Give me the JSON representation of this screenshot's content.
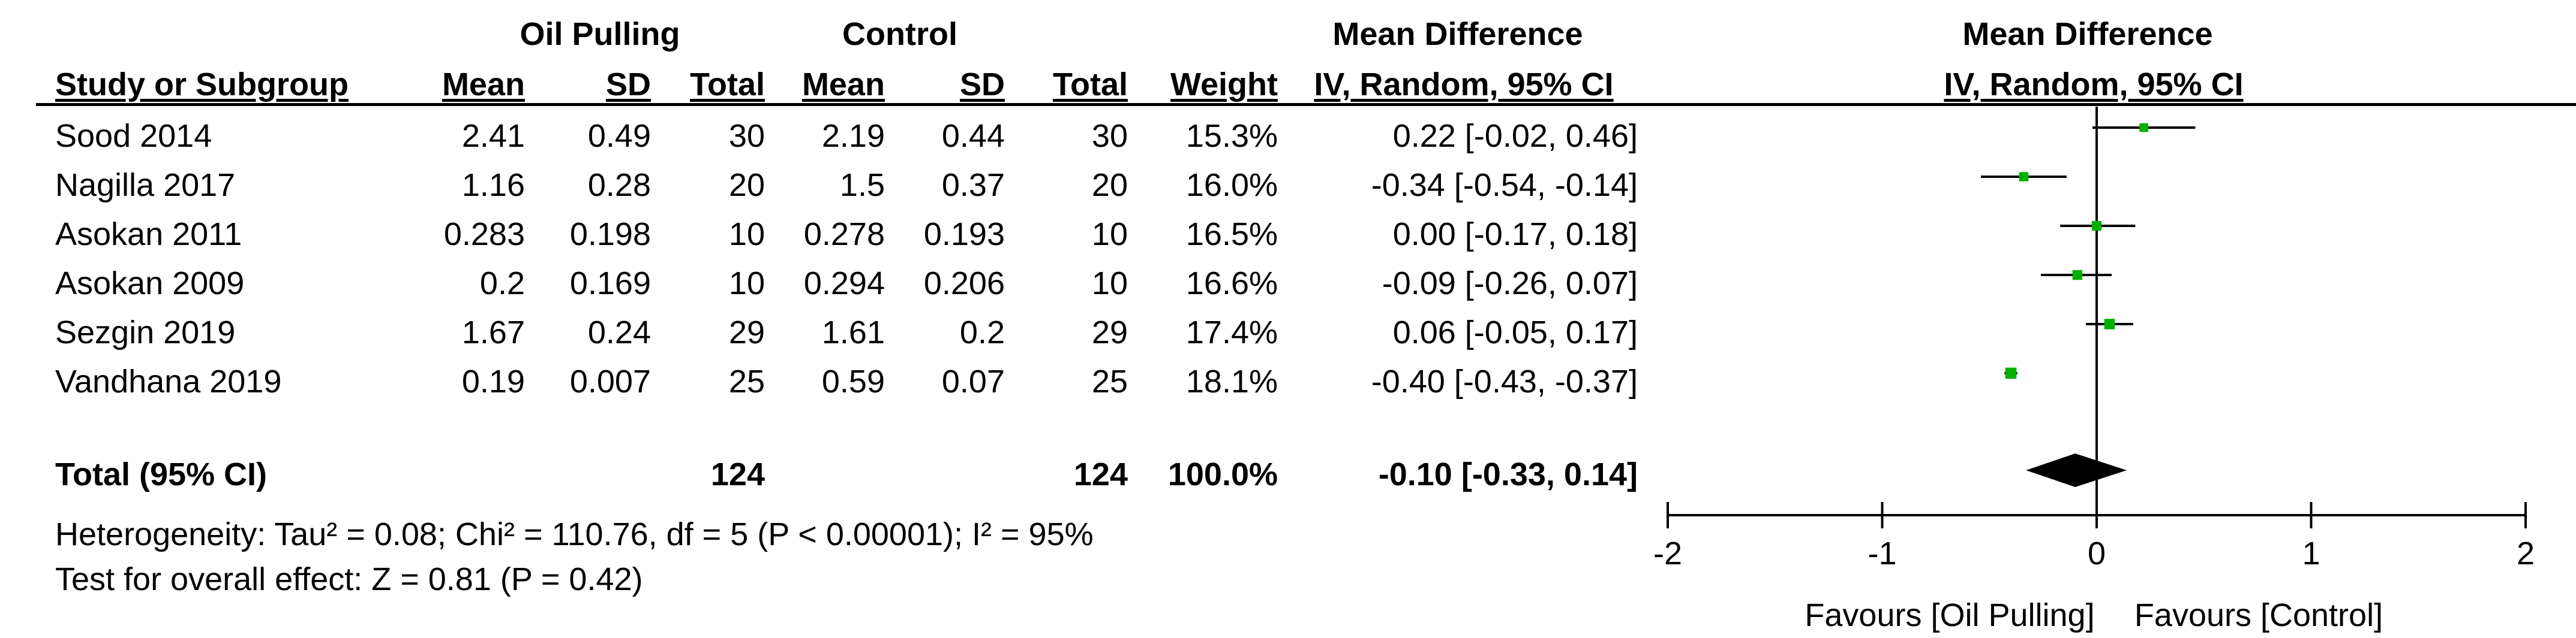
{
  "headers": {
    "group1": "Oil Pulling",
    "group2": "Control",
    "md_group": "Mean Difference",
    "study": "Study or Subgroup",
    "mean": "Mean",
    "sd": "SD",
    "total": "Total",
    "weight": "Weight",
    "md_method": "IV, Random, 95% CI",
    "plot_title": "Mean Difference",
    "plot_method": "IV, Random, 95% CI"
  },
  "rows": [
    {
      "study": "Sood 2014",
      "m1": "2.41",
      "sd1": "0.49",
      "n1": "30",
      "m2": "2.19",
      "sd2": "0.44",
      "n2": "30",
      "weight": "15.3%",
      "ci": "0.22 [-0.02, 0.46]"
    },
    {
      "study": "Nagilla 2017",
      "m1": "1.16",
      "sd1": "0.28",
      "n1": "20",
      "m2": "1.5",
      "sd2": "0.37",
      "n2": "20",
      "weight": "16.0%",
      "ci": "-0.34 [-0.54, -0.14]"
    },
    {
      "study": "Asokan 2011",
      "m1": "0.283",
      "sd1": "0.198",
      "n1": "10",
      "m2": "0.278",
      "sd2": "0.193",
      "n2": "10",
      "weight": "16.5%",
      "ci": "0.00 [-0.17, 0.18]"
    },
    {
      "study": "Asokan 2009",
      "m1": "0.2",
      "sd1": "0.169",
      "n1": "10",
      "m2": "0.294",
      "sd2": "0.206",
      "n2": "10",
      "weight": "16.6%",
      "ci": "-0.09 [-0.26, 0.07]"
    },
    {
      "study": "Sezgin 2019",
      "m1": "1.67",
      "sd1": "0.24",
      "n1": "29",
      "m2": "1.61",
      "sd2": "0.2",
      "n2": "29",
      "weight": "17.4%",
      "ci": "0.06 [-0.05, 0.17]"
    },
    {
      "study": "Vandhana 2019",
      "m1": "0.19",
      "sd1": "0.007",
      "n1": "25",
      "m2": "0.59",
      "sd2": "0.07",
      "n2": "25",
      "weight": "18.1%",
      "ci": "-0.40 [-0.43, -0.37]"
    }
  ],
  "total": {
    "label": "Total (95% CI)",
    "n1": "124",
    "n2": "124",
    "weight": "100.0%",
    "ci": "-0.10 [-0.33, 0.14]"
  },
  "footer": {
    "heterogeneity": "Heterogeneity: Tau² = 0.08; Chi² = 110.76, df = 5 (P < 0.00001); I² = 95%",
    "overall": "Test for overall effect: Z = 0.81 (P = 0.42)"
  },
  "axis": {
    "favours_left": "Favours [Oil Pulling]",
    "favours_right": "Favours [Control]"
  },
  "colors": {
    "marker": "#00b000",
    "diamond": "#000000",
    "line": "#000000"
  },
  "chart_data": {
    "type": "forest",
    "title": "Mean Difference",
    "subtitle": "IV, Random, 95% CI",
    "xlim": [
      -2,
      2
    ],
    "xticks": [
      -2,
      -1,
      0,
      1,
      2
    ],
    "xtick_labels": [
      "-2",
      "-1",
      "0",
      "1",
      "2"
    ],
    "studies": [
      {
        "name": "Sood 2014",
        "md": 0.22,
        "lo": -0.02,
        "hi": 0.46,
        "weight": 15.3
      },
      {
        "name": "Nagilla 2017",
        "md": -0.34,
        "lo": -0.54,
        "hi": -0.14,
        "weight": 16.0
      },
      {
        "name": "Asokan 2011",
        "md": 0.0,
        "lo": -0.17,
        "hi": 0.18,
        "weight": 16.5
      },
      {
        "name": "Asokan 2009",
        "md": -0.09,
        "lo": -0.26,
        "hi": 0.07,
        "weight": 16.6
      },
      {
        "name": "Sezgin 2019",
        "md": 0.06,
        "lo": -0.05,
        "hi": 0.17,
        "weight": 17.4
      },
      {
        "name": "Vandhana 2019",
        "md": -0.4,
        "lo": -0.43,
        "hi": -0.37,
        "weight": 18.1
      }
    ],
    "pooled": {
      "md": -0.1,
      "lo": -0.33,
      "hi": 0.14
    }
  }
}
